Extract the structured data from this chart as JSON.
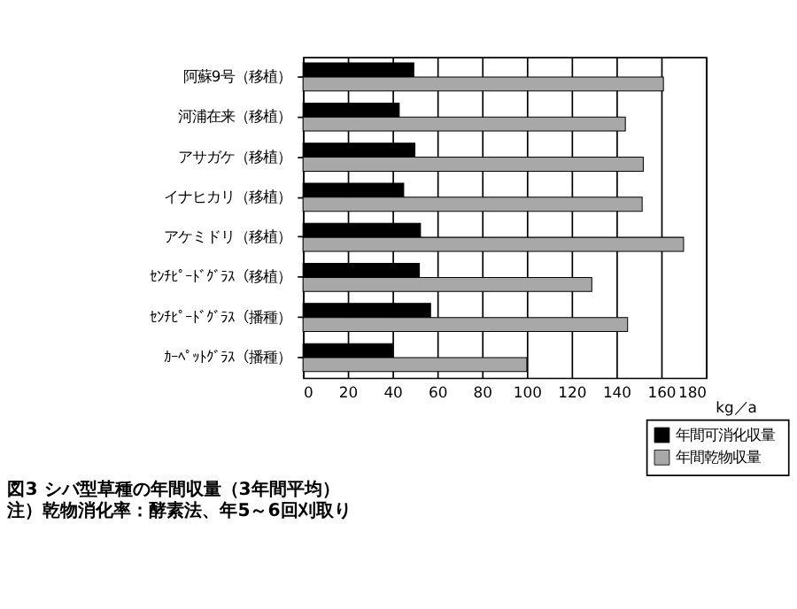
{
  "chart_data": {
    "type": "bar",
    "orientation": "horizontal",
    "title": "図3 シバ型草種の年間収量（3年間平均）",
    "annotations": [
      "注）乾物消化率：酵素法、年5～6回刈取り"
    ],
    "xlabel": "kg／a",
    "categories": [
      "阿蘇9号（移植）",
      "河浦在来（移植）",
      "アサガケ（移植）",
      "イナヒカリ（移植）",
      "アケミドリ（移植）",
      "ｾﾝﾁﾋﾟｰﾄﾞｸﾞﾗｽ（移植）",
      "ｾﾝﾁﾋﾟｰﾄﾞｸﾞﾗｽ（播種）",
      "ｶｰﾍﾟｯﾄｸﾞﾗｽ（播種）"
    ],
    "series": [
      {
        "name": "年間可消化収量",
        "color": "#000000",
        "values": [
          49.5,
          43,
          50,
          45,
          52.5,
          52,
          57,
          40
        ]
      },
      {
        "name": "年間乾物収量",
        "color": "#a8a8a8",
        "values": [
          161,
          144,
          152,
          151.5,
          170,
          129,
          145,
          100
        ]
      }
    ],
    "xlim": [
      0,
      180
    ],
    "xticks": [
      0,
      20,
      40,
      60,
      80,
      100,
      120,
      140,
      160,
      180
    ],
    "grid": "x",
    "legend": "bottom right"
  }
}
